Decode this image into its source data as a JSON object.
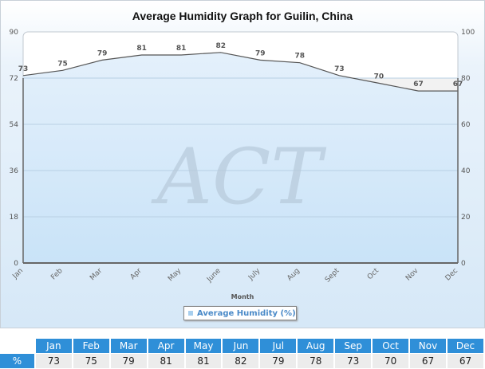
{
  "chart_data": {
    "type": "area",
    "title": "Average Humidity Graph for Guilin, China",
    "xlabel": "Month",
    "ylabel": "",
    "categories": [
      "Jan",
      "Feb",
      "Mar",
      "Apr",
      "May",
      "June",
      "July",
      "Aug",
      "Sept",
      "Oct",
      "Nov",
      "Dec"
    ],
    "series": [
      {
        "name": "Average Humidity (%)",
        "values": [
          73,
          75,
          79,
          81,
          81,
          82,
          79,
          78,
          73,
          70,
          67,
          67
        ]
      }
    ],
    "ylim_left": [
      0,
      90
    ],
    "yticks_left": [
      0,
      18,
      36,
      54,
      72,
      90
    ],
    "ylim_right": [
      0,
      100
    ],
    "yticks_right": [
      0,
      20,
      40,
      60,
      80,
      100
    ],
    "grid": true,
    "legend_position": "bottom",
    "colors": {
      "fill": "#cfe6f8",
      "line": "#555555"
    }
  },
  "legend": {
    "label": "Average Humidity (%)"
  },
  "table": {
    "row_label": "%",
    "headers": [
      "Jan",
      "Feb",
      "Mar",
      "Apr",
      "May",
      "Jun",
      "Jul",
      "Aug",
      "Sep",
      "Oct",
      "Nov",
      "Dec"
    ],
    "values": [
      "73",
      "75",
      "79",
      "81",
      "81",
      "82",
      "79",
      "78",
      "73",
      "70",
      "67",
      "67"
    ]
  }
}
